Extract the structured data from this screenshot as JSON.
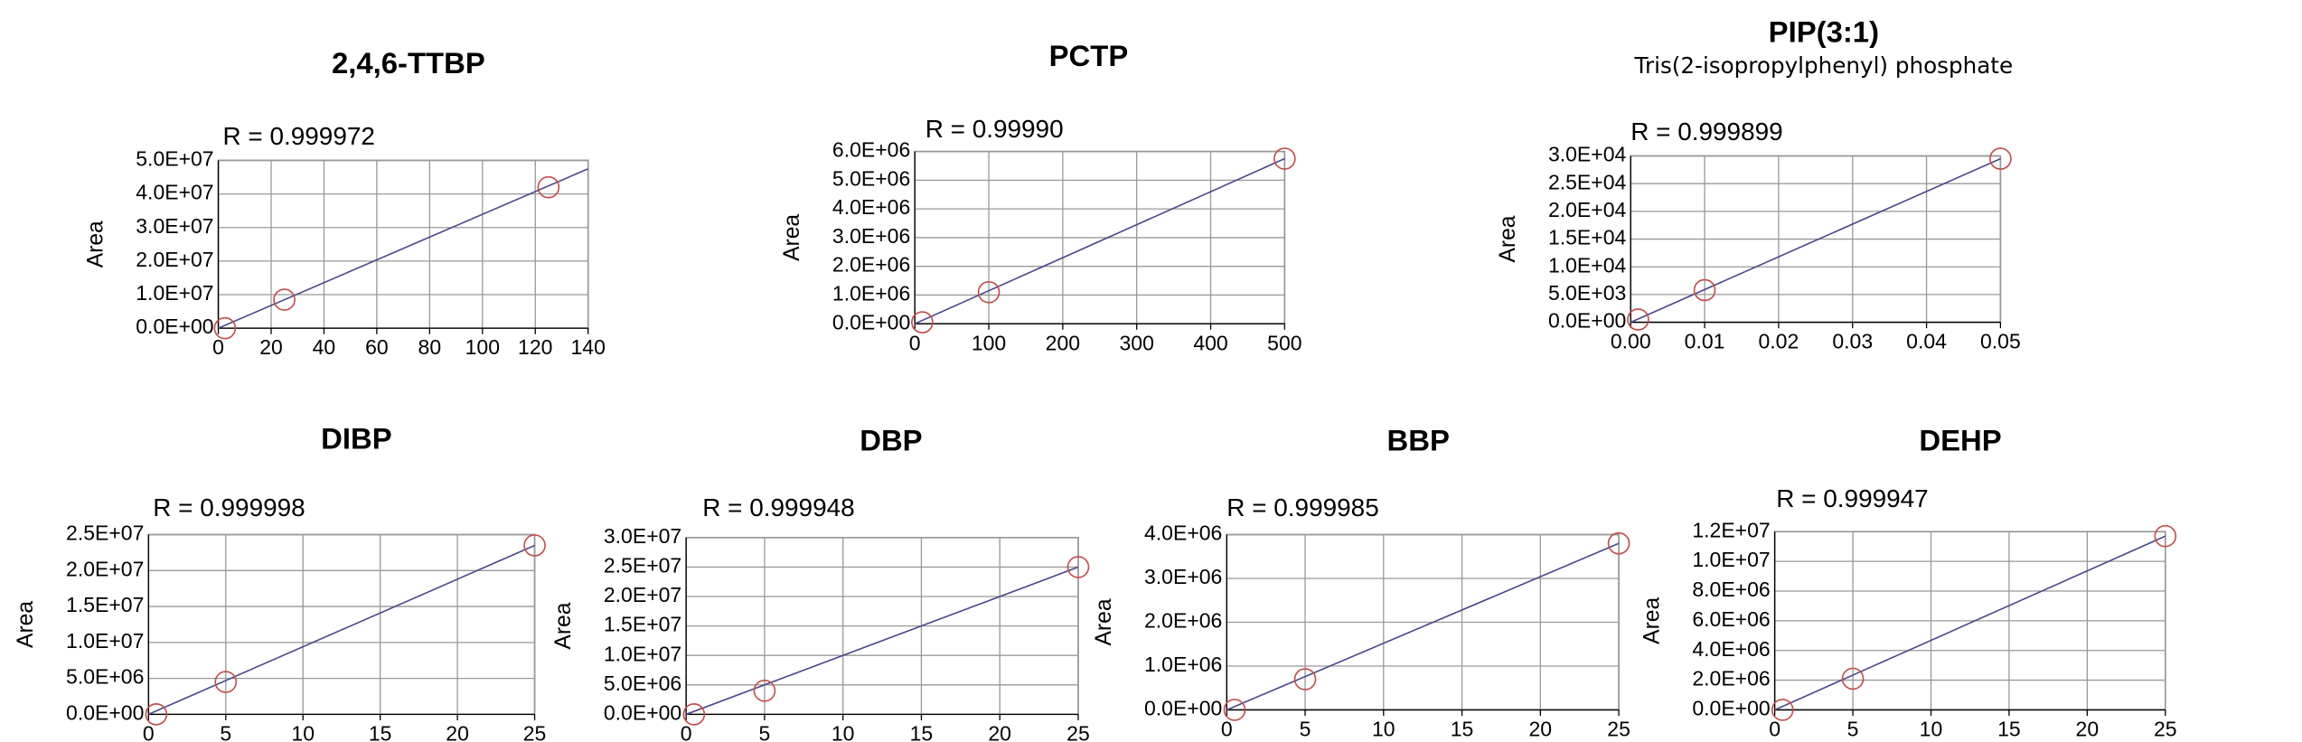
{
  "chart_data": [
    {
      "type": "scatter",
      "title": "2,4,6-TTBP",
      "annotation": "R = 0.999972",
      "ylabel": "Area",
      "x": [
        2.5,
        25,
        125
      ],
      "y": [
        0,
        8500000,
        42000000
      ],
      "color": "#c0504d",
      "fit": {
        "x": [
          0,
          140
        ],
        "y": [
          0,
          47500000
        ],
        "color": "#4a4a8c"
      },
      "xlim": [
        0,
        140
      ],
      "xticks": [
        0,
        20,
        40,
        60,
        80,
        100,
        120,
        140
      ],
      "ylim": [
        0,
        50000000
      ],
      "yticks": [
        {
          "value": 0,
          "label": "0.0E+00"
        },
        {
          "value": 10000000,
          "label": "1.0E+07"
        },
        {
          "value": 20000000,
          "label": "2.0E+07"
        },
        {
          "value": 30000000,
          "label": "3.0E+07"
        },
        {
          "value": 40000000,
          "label": "4.0E+07"
        },
        {
          "value": 50000000,
          "label": "5.0E+07"
        }
      ],
      "grid": true
    },
    {
      "type": "scatter",
      "title": "PCTP",
      "annotation": "R = 0.99990",
      "ylabel": "Area",
      "x": [
        10,
        100,
        500
      ],
      "y": [
        50000,
        1100000,
        5750000
      ],
      "color": "#c0504d",
      "fit": {
        "x": [
          0,
          500
        ],
        "y": [
          0,
          5750000
        ],
        "color": "#4a4a8c"
      },
      "xlim": [
        0,
        500
      ],
      "xticks": [
        0,
        100,
        200,
        300,
        400,
        500
      ],
      "ylim": [
        0,
        6000000
      ],
      "yticks": [
        {
          "value": 0,
          "label": "0.0E+00"
        },
        {
          "value": 1000000,
          "label": "1.0E+06"
        },
        {
          "value": 2000000,
          "label": "2.0E+06"
        },
        {
          "value": 3000000,
          "label": "3.0E+06"
        },
        {
          "value": 4000000,
          "label": "4.0E+06"
        },
        {
          "value": 5000000,
          "label": "5.0E+06"
        },
        {
          "value": 6000000,
          "label": "6.0E+06"
        }
      ],
      "grid": true
    },
    {
      "type": "scatter",
      "title": "PIP(3:1)",
      "subtitle": "Tris(2-isopropylphenyl) phosphate",
      "annotation": "R = 0.999899",
      "ylabel": "Area",
      "x": [
        0.001,
        0.01,
        0.05
      ],
      "y": [
        500,
        5800,
        29500
      ],
      "color": "#c0504d",
      "fit": {
        "x": [
          0,
          0.05
        ],
        "y": [
          0,
          29500
        ],
        "color": "#4a4a8c"
      },
      "xlim": [
        0,
        0.05
      ],
      "xticks": [
        {
          "value": 0,
          "label": "0.00"
        },
        {
          "value": 0.01,
          "label": "0.01"
        },
        {
          "value": 0.02,
          "label": "0.02"
        },
        {
          "value": 0.03,
          "label": "0.03"
        },
        {
          "value": 0.04,
          "label": "0.04"
        },
        {
          "value": 0.05,
          "label": "0.05"
        }
      ],
      "ylim": [
        0,
        30000
      ],
      "yticks": [
        {
          "value": 0,
          "label": "0.0E+00"
        },
        {
          "value": 5000,
          "label": "5.0E+03"
        },
        {
          "value": 10000,
          "label": "1.0E+04"
        },
        {
          "value": 15000,
          "label": "1.5E+04"
        },
        {
          "value": 20000,
          "label": "2.0E+04"
        },
        {
          "value": 25000,
          "label": "2.5E+04"
        },
        {
          "value": 30000,
          "label": "3.0E+04"
        }
      ],
      "grid": true
    },
    {
      "type": "scatter",
      "title": "DIBP",
      "annotation": "R = 0.999998",
      "ylabel": "Area",
      "x": [
        0.5,
        5,
        25
      ],
      "y": [
        0,
        4500000,
        23500000
      ],
      "color": "#c0504d",
      "fit": {
        "x": [
          0,
          25
        ],
        "y": [
          0,
          23500000
        ],
        "color": "#4a4a8c"
      },
      "xlim": [
        0,
        25
      ],
      "xticks": [
        0,
        5,
        10,
        15,
        20,
        25
      ],
      "ylim": [
        0,
        25000000
      ],
      "yticks": [
        {
          "value": 0,
          "label": "0.0E+00"
        },
        {
          "value": 5000000,
          "label": "5.0E+06"
        },
        {
          "value": 10000000,
          "label": "1.0E+07"
        },
        {
          "value": 15000000,
          "label": "1.5E+07"
        },
        {
          "value": 20000000,
          "label": "2.0E+07"
        },
        {
          "value": 25000000,
          "label": "2.5E+07"
        }
      ],
      "grid": true
    },
    {
      "type": "scatter",
      "title": "DBP",
      "annotation": "R = 0.999948",
      "ylabel": "Area",
      "x": [
        0.5,
        5,
        25
      ],
      "y": [
        0,
        4000000,
        25000000
      ],
      "color": "#c0504d",
      "fit": {
        "x": [
          0,
          25
        ],
        "y": [
          0,
          25000000
        ],
        "color": "#4a4a8c"
      },
      "xlim": [
        0,
        25
      ],
      "xticks": [
        0,
        5,
        10,
        15,
        20,
        25
      ],
      "ylim": [
        0,
        30000000
      ],
      "yticks": [
        {
          "value": 0,
          "label": "0.0E+00"
        },
        {
          "value": 5000000,
          "label": "5.0E+06"
        },
        {
          "value": 10000000,
          "label": "1.0E+07"
        },
        {
          "value": 15000000,
          "label": "1.5E+07"
        },
        {
          "value": 20000000,
          "label": "2.0E+07"
        },
        {
          "value": 25000000,
          "label": "2.5E+07"
        },
        {
          "value": 30000000,
          "label": "3.0E+07"
        }
      ],
      "grid": true
    },
    {
      "type": "scatter",
      "title": "BBP",
      "annotation": "R = 0.999985",
      "ylabel": "Area",
      "x": [
        0.5,
        5,
        25
      ],
      "y": [
        0,
        700000,
        3800000
      ],
      "color": "#c0504d",
      "fit": {
        "x": [
          0,
          25
        ],
        "y": [
          0,
          3800000
        ],
        "color": "#4a4a8c"
      },
      "xlim": [
        0,
        25
      ],
      "xticks": [
        0,
        5,
        10,
        15,
        20,
        25
      ],
      "ylim": [
        0,
        4000000
      ],
      "yticks": [
        {
          "value": 0,
          "label": "0.0E+00"
        },
        {
          "value": 1000000,
          "label": "1.0E+06"
        },
        {
          "value": 2000000,
          "label": "2.0E+06"
        },
        {
          "value": 3000000,
          "label": "3.0E+06"
        },
        {
          "value": 4000000,
          "label": "4.0E+06"
        }
      ],
      "grid": true
    },
    {
      "type": "scatter",
      "title": "DEHP",
      "annotation": "R = 0.999947",
      "ylabel": "Area",
      "x": [
        0.5,
        5,
        25
      ],
      "y": [
        0,
        2100000,
        11700000
      ],
      "color": "#c0504d",
      "fit": {
        "x": [
          0,
          25
        ],
        "y": [
          0,
          11700000
        ],
        "color": "#4a4a8c"
      },
      "xlim": [
        0,
        25
      ],
      "xticks": [
        0,
        5,
        10,
        15,
        20,
        25
      ],
      "ylim": [
        0,
        12000000
      ],
      "yticks": [
        {
          "value": 0,
          "label": "0.0E+00"
        },
        {
          "value": 2000000,
          "label": "2.0E+06"
        },
        {
          "value": 4000000,
          "label": "4.0E+06"
        },
        {
          "value": 6000000,
          "label": "6.0E+06"
        },
        {
          "value": 8000000,
          "label": "8.0E+06"
        },
        {
          "value": 10000000,
          "label": "1.0E+07"
        },
        {
          "value": 12000000,
          "label": "1.2E+07"
        }
      ],
      "grid": true
    }
  ]
}
